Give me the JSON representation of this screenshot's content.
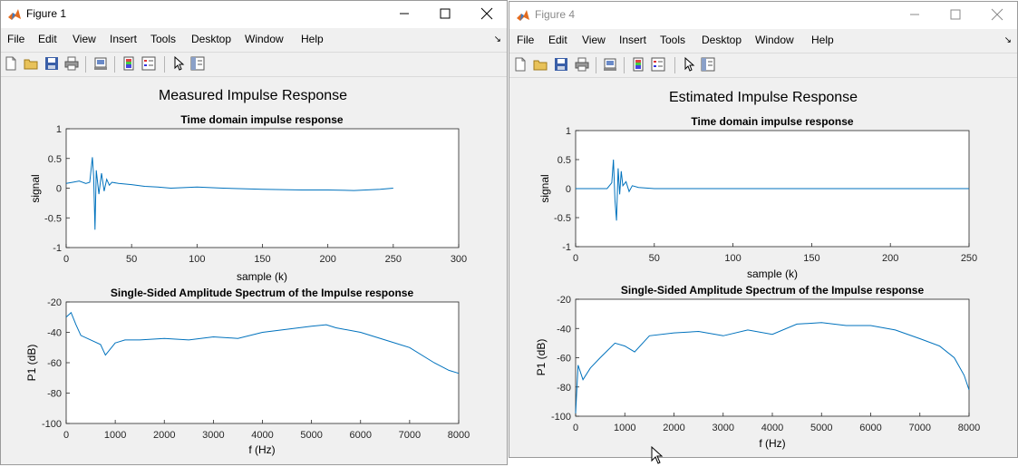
{
  "windows": [
    {
      "title": "Figure 1",
      "active": true,
      "menu": [
        "File",
        "Edit",
        "View",
        "Insert",
        "Tools",
        "Desktop",
        "Window",
        "Help"
      ],
      "figure_title": "Measured Impulse Response",
      "plots": [
        {
          "title": "Time domain impulse response",
          "xlabel": "sample (k)",
          "ylabel": "signal",
          "xticks": [
            "0",
            "50",
            "100",
            "150",
            "200",
            "250",
            "300"
          ],
          "yticks": [
            "1",
            "0.5",
            "0",
            "-0.5",
            "-1"
          ]
        },
        {
          "title": "Single-Sided Amplitude Spectrum of the Impulse response",
          "xlabel": "f (Hz)",
          "ylabel": "P1 (dB)",
          "xticks": [
            "0",
            "1000",
            "2000",
            "3000",
            "4000",
            "5000",
            "6000",
            "7000",
            "8000"
          ],
          "yticks": [
            "-20",
            "-40",
            "-60",
            "-80",
            "-100"
          ]
        }
      ]
    },
    {
      "title": "Figure 4",
      "active": false,
      "menu": [
        "File",
        "Edit",
        "View",
        "Insert",
        "Tools",
        "Desktop",
        "Window",
        "Help"
      ],
      "figure_title": "Estimated Impulse Response",
      "plots": [
        {
          "title": "Time domain impulse response",
          "xlabel": "sample (k)",
          "ylabel": "signal",
          "xticks": [
            "0",
            "50",
            "100",
            "150",
            "200",
            "250"
          ],
          "yticks": [
            "1",
            "0.5",
            "0",
            "-0.5",
            "-1"
          ]
        },
        {
          "title": "Single-Sided Amplitude Spectrum of the Impulse response",
          "xlabel": "f (Hz)",
          "ylabel": "P1 (dB)",
          "xticks": [
            "0",
            "1000",
            "2000",
            "3000",
            "4000",
            "5000",
            "6000",
            "7000",
            "8000"
          ],
          "yticks": [
            "-20",
            "-40",
            "-60",
            "-80",
            "-100"
          ]
        }
      ]
    }
  ],
  "colors": {
    "line": "#0072bd",
    "titlebar": "#ffffff",
    "window_bg": "#f0f0f0",
    "axes_bg": "#ffffff"
  },
  "toolbar_icons": [
    "new-figure-icon",
    "open-file-icon",
    "save-icon",
    "print-icon",
    "print-preview-icon",
    "colorbar-icon",
    "legend-icon",
    "edit-plot-icon",
    "property-inspector-icon"
  ],
  "chart_data": [
    {
      "type": "line",
      "figure": "Figure 1",
      "title": "Time domain impulse response",
      "xlabel": "sample (k)",
      "ylabel": "signal",
      "xlim": [
        0,
        300
      ],
      "ylim": [
        -1,
        1
      ],
      "x": [
        0,
        5,
        10,
        15,
        18,
        20,
        21,
        22,
        23,
        25,
        27,
        29,
        31,
        33,
        35,
        40,
        50,
        60,
        70,
        80,
        100,
        120,
        150,
        180,
        200,
        220,
        240,
        250
      ],
      "y": [
        0.08,
        0.1,
        0.12,
        0.08,
        0.1,
        0.52,
        0.2,
        -0.7,
        0.3,
        -0.1,
        0.25,
        -0.05,
        0.15,
        0.05,
        0.1,
        0.08,
        0.06,
        0.03,
        0.02,
        0.0,
        0.02,
        0.0,
        -0.02,
        -0.03,
        -0.03,
        -0.04,
        -0.02,
        0.0
      ]
    },
    {
      "type": "line",
      "figure": "Figure 1",
      "title": "Single-Sided Amplitude Spectrum of the Impulse response",
      "xlabel": "f (Hz)",
      "ylabel": "P1 (dB)",
      "xlim": [
        0,
        8000
      ],
      "ylim": [
        -100,
        -20
      ],
      "x": [
        0,
        100,
        200,
        300,
        500,
        700,
        800,
        1000,
        1200,
        1500,
        2000,
        2500,
        3000,
        3500,
        4000,
        4500,
        5000,
        5300,
        5500,
        6000,
        6500,
        7000,
        7500,
        7800,
        8000
      ],
      "y": [
        -30,
        -27,
        -35,
        -42,
        -45,
        -48,
        -55,
        -47,
        -45,
        -45,
        -44,
        -45,
        -43,
        -44,
        -40,
        -38,
        -36,
        -35,
        -37,
        -40,
        -45,
        -50,
        -60,
        -65,
        -67
      ]
    },
    {
      "type": "line",
      "figure": "Figure 4",
      "title": "Time domain impulse response",
      "xlabel": "sample (k)",
      "ylabel": "signal",
      "xlim": [
        0,
        250
      ],
      "ylim": [
        -1,
        1
      ],
      "x": [
        0,
        10,
        20,
        23,
        24,
        25,
        26,
        27,
        28,
        29,
        30,
        32,
        34,
        36,
        40,
        50,
        100,
        150,
        200,
        250
      ],
      "y": [
        0,
        0,
        0,
        0.1,
        0.5,
        -0.2,
        -0.55,
        0.35,
        -0.1,
        0.3,
        0.05,
        0.12,
        -0.05,
        0.05,
        0.02,
        0.0,
        0.0,
        0.0,
        0.0,
        0.0
      ]
    },
    {
      "type": "line",
      "figure": "Figure 4",
      "title": "Single-Sided Amplitude Spectrum of the Impulse response",
      "xlabel": "f (Hz)",
      "ylabel": "P1 (dB)",
      "xlim": [
        0,
        8000
      ],
      "ylim": [
        -100,
        -20
      ],
      "x": [
        0,
        50,
        150,
        300,
        500,
        800,
        1000,
        1200,
        1500,
        2000,
        2500,
        3000,
        3500,
        4000,
        4500,
        5000,
        5500,
        6000,
        6500,
        7000,
        7400,
        7700,
        7900,
        8000
      ],
      "y": [
        -98,
        -65,
        -75,
        -67,
        -60,
        -50,
        -52,
        -56,
        -45,
        -43,
        -42,
        -45,
        -41,
        -44,
        -37,
        -36,
        -38,
        -38,
        -41,
        -47,
        -52,
        -60,
        -72,
        -82
      ]
    }
  ]
}
